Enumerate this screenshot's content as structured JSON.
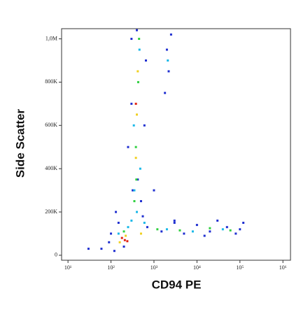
{
  "chart_data": {
    "type": "scatter",
    "x_label": "CD94 PE",
    "y_label": "Side Scatter",
    "xscale": "log",
    "xlim": [
      7.1,
      1500000
    ],
    "xticks": [
      {
        "value": 10,
        "label": "10¹"
      },
      {
        "value": 100,
        "label": "10²"
      },
      {
        "value": 1000,
        "label": "10³"
      },
      {
        "value": 10000,
        "label": "10⁴"
      },
      {
        "value": 100000,
        "label": "10⁵"
      },
      {
        "value": 1000000,
        "label": "10⁶"
      }
    ],
    "ylim": [
      -23000,
      1047000
    ],
    "yticks": [
      0,
      {
        "value": 200000,
        "label": "200K"
      },
      {
        "value": 400000,
        "label": "400K"
      },
      {
        "value": 600000,
        "label": "600K"
      },
      {
        "value": 800000,
        "label": "800K"
      },
      {
        "value": 1000000,
        "label": "1,0M"
      }
    ],
    "series": [
      {
        "color": "#1f2fd0",
        "x": [
          60,
          90,
          120,
          150,
          130,
          300,
          320,
          500,
          550,
          700,
          1500,
          3000,
          5000,
          10000,
          20000,
          50000,
          100000,
          120000,
          80000,
          2000,
          2200,
          1800,
          2500,
          600,
          250,
          300,
          650,
          420,
          200,
          100,
          30,
          1000,
          3000,
          30000,
          15000,
          400
        ],
        "values": [
          30000,
          60000,
          20000,
          150000,
          200000,
          1000000,
          300000,
          250000,
          180000,
          130000,
          110000,
          150000,
          100000,
          140000,
          110000,
          130000,
          120000,
          150000,
          100000,
          950000,
          850000,
          750000,
          1020000,
          600000,
          500000,
          700000,
          900000,
          350000,
          40000,
          100000,
          30000,
          300000,
          160000,
          160000,
          90000,
          1040000
        ]
      },
      {
        "color": "#18b8e8",
        "x": [
          350,
          480,
          340,
          460,
          300,
          600,
          2000,
          8000,
          40000,
          150,
          250,
          2100,
          400
        ],
        "values": [
          300000,
          400000,
          600000,
          950000,
          160000,
          150000,
          120000,
          110000,
          120000,
          100000,
          130000,
          900000,
          200000
        ]
      },
      {
        "color": "#30d040",
        "x": [
          380,
          430,
          390,
          450,
          200,
          1200,
          4000,
          20000,
          60000,
          350
        ],
        "values": [
          500000,
          800000,
          350000,
          1000000,
          110000,
          120000,
          115000,
          125000,
          115000,
          250000
        ]
      },
      {
        "color": "#f0d020",
        "x": [
          400,
          420,
          380,
          220,
          160,
          500
        ],
        "values": [
          650000,
          850000,
          450000,
          90000,
          60000,
          100000
        ]
      },
      {
        "color": "#e02010",
        "x": [
          380,
          210,
          180,
          240
        ],
        "values": [
          700000,
          70000,
          80000,
          65000
        ]
      }
    ]
  }
}
